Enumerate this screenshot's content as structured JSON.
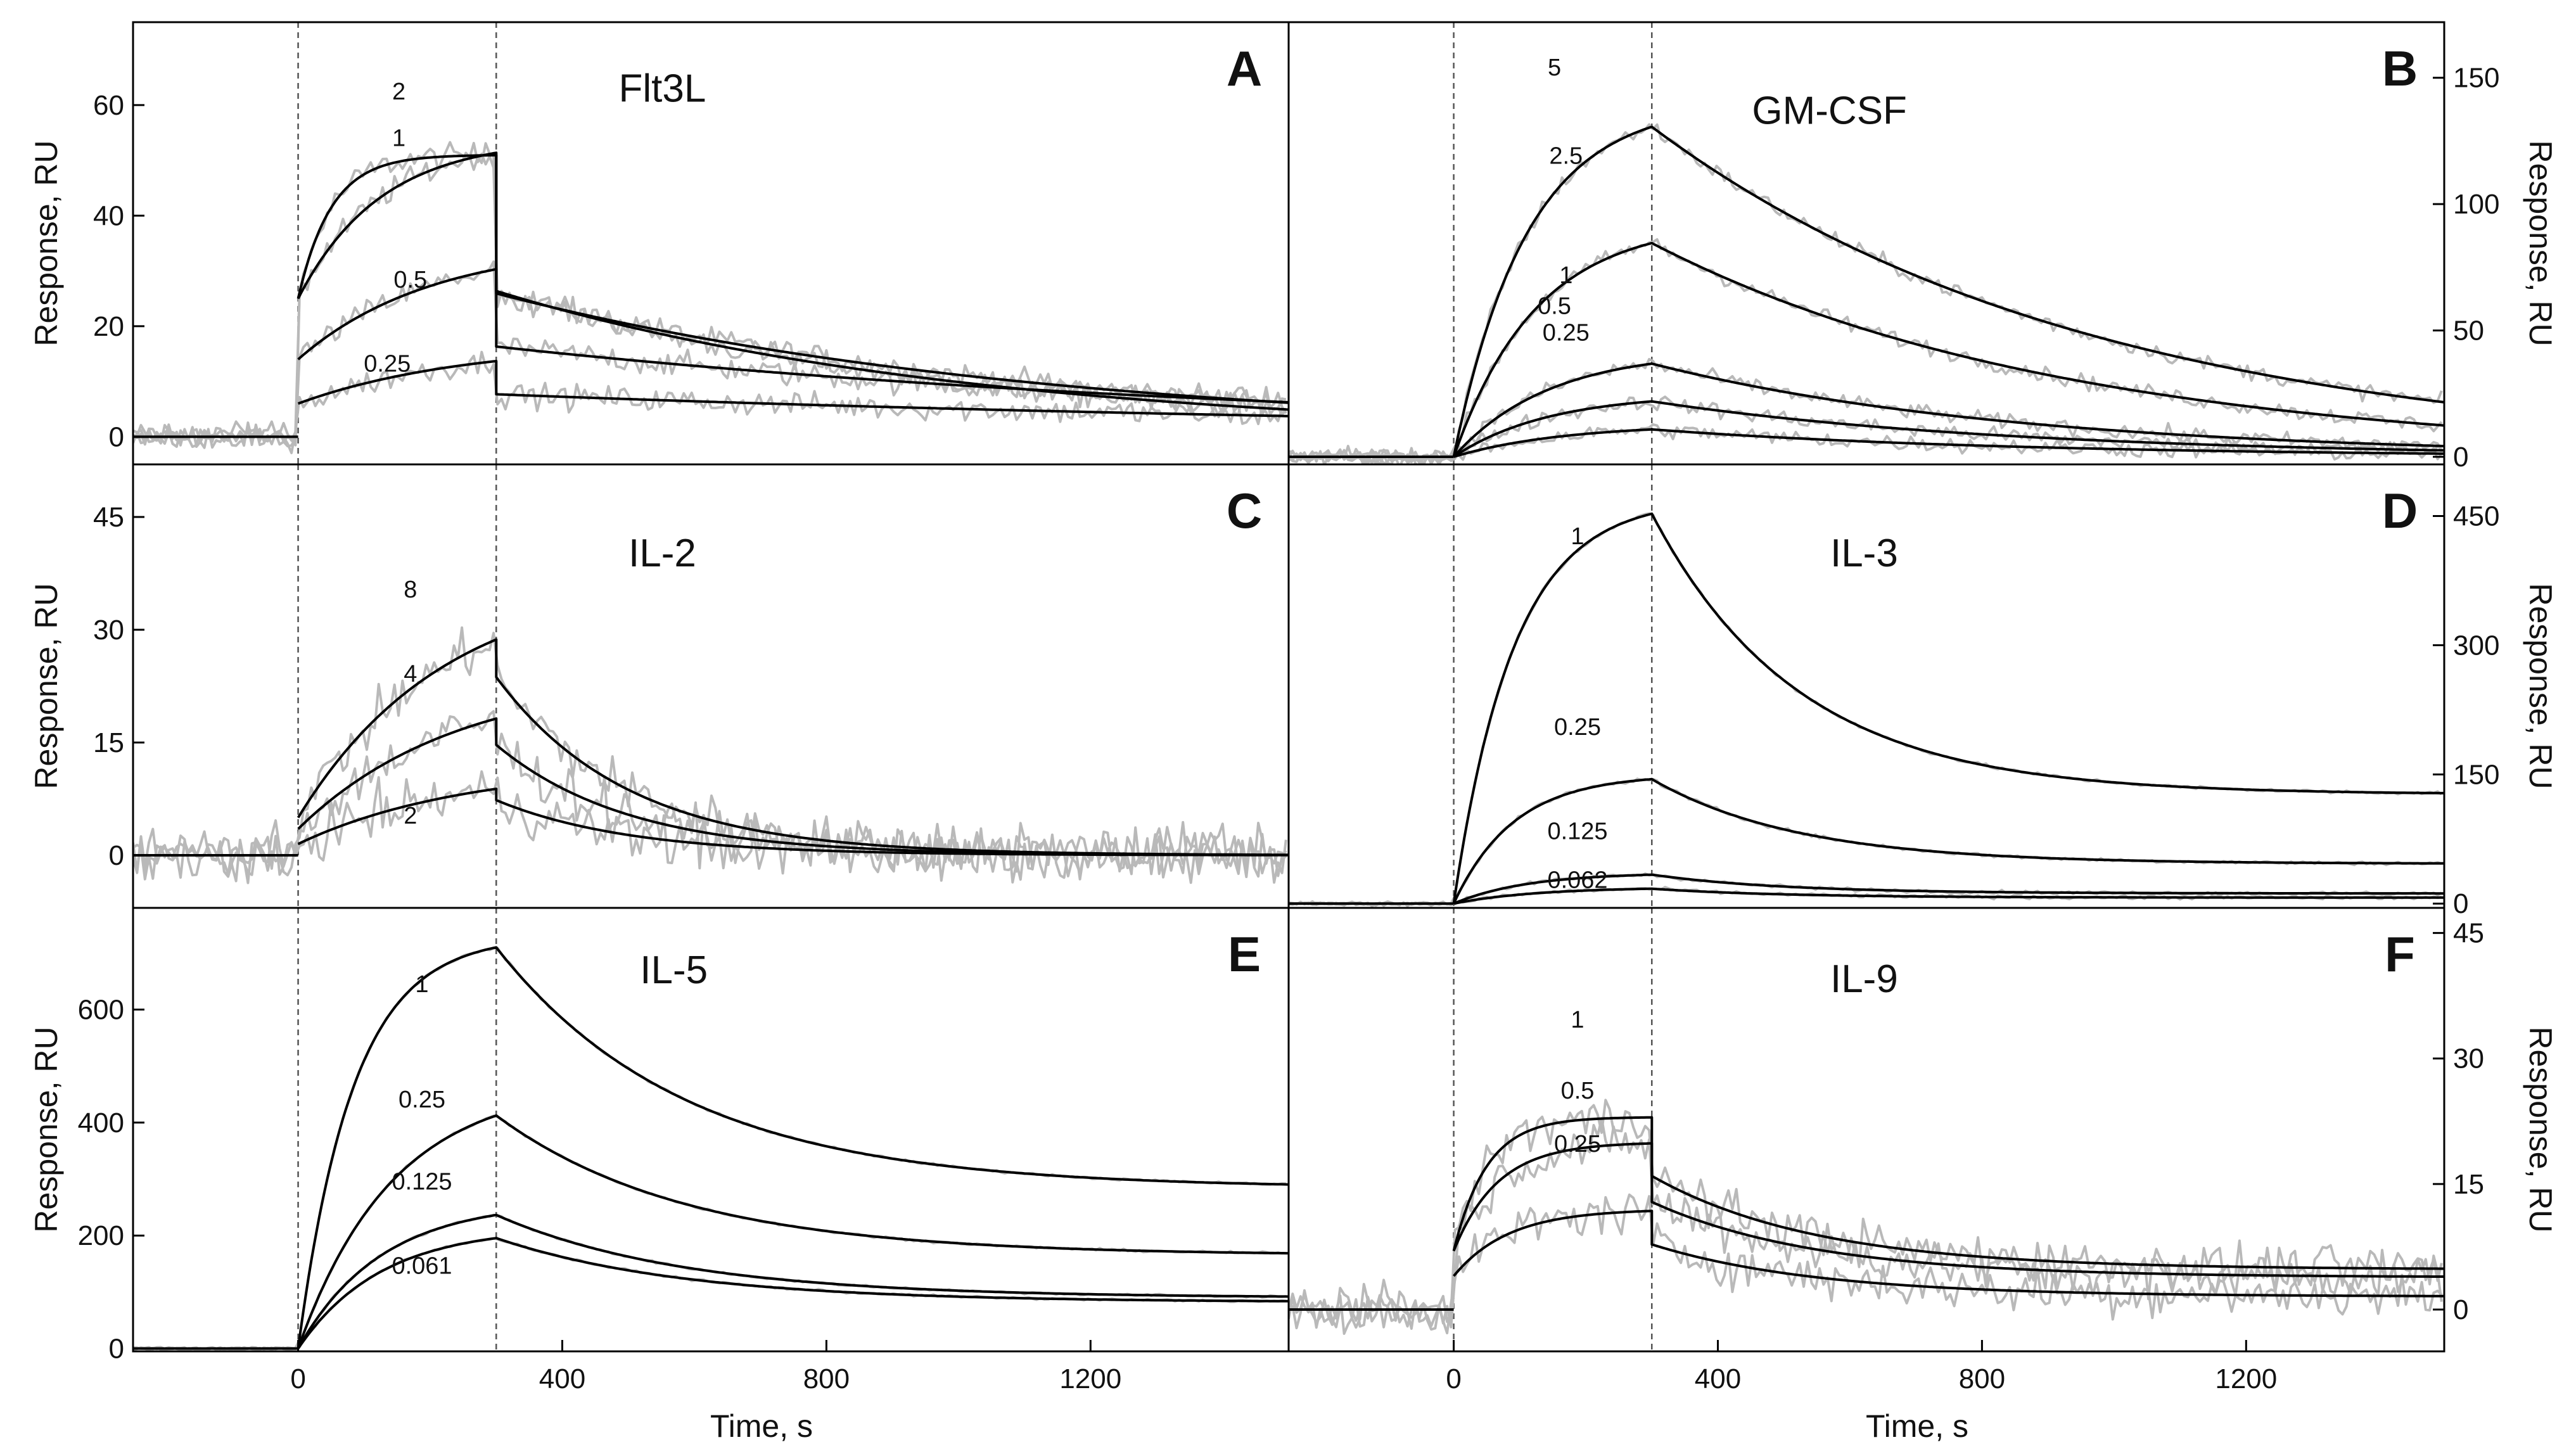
{
  "chart_data": {
    "type": "line",
    "description_axes": "Sensorgrams: response vs time, association 0-300 s, dissociation after 300 s",
    "injection_start_s": 0,
    "injection_end_s": 300,
    "x_axis": {
      "label": "Time, s",
      "range": [
        -250,
        1500
      ],
      "ticks": [
        0,
        400,
        800,
        1200
      ],
      "tick_labels": [
        "0",
        "400",
        "800",
        "1200"
      ]
    },
    "colors": {
      "raw": "#b9b9b9",
      "fit": "#000000",
      "frame": "#000000"
    },
    "panels": [
      {
        "id": "A",
        "letter": "A",
        "title": "Flt3L",
        "ylabel": "Response, RU",
        "y_axis_side": "left",
        "ylim": [
          -5,
          75
        ],
        "yticks": [
          0,
          20,
          40,
          60
        ],
        "ytick_labels": [
          "0",
          "20",
          "40",
          "60"
        ],
        "x_range": [
          -250,
          1500
        ],
        "show_x_ticks": false,
        "noise": 2.2,
        "jump": true,
        "baseline_y": 0,
        "series": [
          {
            "label": "2",
            "Rmax": 51,
            "k": 0.02,
            "jump": 25,
            "end": 25,
            "kd": 0.0012
          },
          {
            "label": "1",
            "Rmax": 54,
            "k": 0.008,
            "jump": 25,
            "end": 23,
            "kd": 0.0014
          },
          {
            "label": "0.5",
            "Rmax": 35,
            "k": 0.005,
            "jump": 14,
            "end": 16,
            "kd": 0.0008
          },
          {
            "label": "0.25",
            "Rmax": 17,
            "k": 0.004,
            "jump": 6,
            "end": 8,
            "kd": 0.0006
          }
        ]
      },
      {
        "id": "B",
        "letter": "B",
        "title": "GM-CSF",
        "ylabel": "Response, RU",
        "y_axis_side": "right",
        "ylim": [
          -3,
          172
        ],
        "yticks": [
          0,
          50,
          100,
          150
        ],
        "ytick_labels": [
          "0",
          "50",
          "100",
          "150"
        ],
        "x_range": [
          -250,
          1500
        ],
        "show_x_ticks": false,
        "noise": 3,
        "jump": false,
        "baseline_y": 0,
        "series": [
          {
            "label": "5",
            "Rmax": 140,
            "k": 0.009,
            "end": 88,
            "kd": 0.0015
          },
          {
            "label": "2.5",
            "Rmax": 93,
            "k": 0.008,
            "end": 58,
            "kd": 0.0016
          },
          {
            "label": "1",
            "Rmax": 42,
            "k": 0.007,
            "end": 28,
            "kd": 0.0018
          },
          {
            "label": "0.5",
            "Rmax": 25,
            "k": 0.007,
            "end": 16,
            "kd": 0.0018
          },
          {
            "label": "0.25",
            "Rmax": 13,
            "k": 0.006,
            "end": 8,
            "kd": 0.0018
          }
        ]
      },
      {
        "id": "C",
        "letter": "C",
        "title": "IL-2",
        "ylabel": "Response, RU",
        "y_axis_side": "left",
        "ylim": [
          -7,
          52
        ],
        "yticks": [
          0,
          15,
          30,
          45
        ],
        "ytick_labels": [
          "0",
          "15",
          "30",
          "45"
        ],
        "x_range": [
          -250,
          1500
        ],
        "show_x_ticks": false,
        "noise": 3.2,
        "jump": true,
        "baseline_y": 0,
        "series": [
          {
            "label": "8",
            "Rmax": 37,
            "k": 0.0045,
            "jump": 5,
            "end": 19,
            "kd": 0.005
          },
          {
            "label": "4",
            "Rmax": 24,
            "k": 0.0042,
            "jump": 3.5,
            "end": 11,
            "kd": 0.005
          },
          {
            "label": "2",
            "Rmax": 12,
            "k": 0.004,
            "jump": 1.5,
            "end": 6,
            "kd": 0.005
          }
        ]
      },
      {
        "id": "D",
        "letter": "D",
        "title": "IL-3",
        "ylabel": "Response, RU",
        "y_axis_side": "right",
        "ylim": [
          -5,
          510
        ],
        "yticks": [
          0,
          150,
          300,
          450
        ],
        "ytick_labels": [
          "0",
          "150",
          "300",
          "450"
        ],
        "x_range": [
          -250,
          1500
        ],
        "show_x_ticks": false,
        "noise": 2,
        "jump": false,
        "baseline_y": 0,
        "series": [
          {
            "label": "1",
            "Rmax": 470,
            "k": 0.011,
            "end": 140,
            "floor": 0.28,
            "kd": 0.0045
          },
          {
            "label": "0.25",
            "Rmax": 150,
            "k": 0.011,
            "end": 50,
            "floor": 0.32,
            "kd": 0.0045
          },
          {
            "label": "0.125",
            "Rmax": 36,
            "k": 0.009,
            "end": 12,
            "floor": 0.35,
            "kd": 0.005
          },
          {
            "label": "0.062",
            "Rmax": 19,
            "k": 0.008,
            "end": 7,
            "floor": 0.4,
            "kd": 0.005
          }
        ]
      },
      {
        "id": "E",
        "letter": "E",
        "title": "IL-5",
        "ylabel": "Response, RU",
        "y_axis_side": "left",
        "ylim": [
          -5,
          780
        ],
        "yticks": [
          0,
          200,
          400,
          600
        ],
        "ytick_labels": [
          "0",
          "200",
          "400",
          "600"
        ],
        "x_range": [
          -250,
          1500
        ],
        "show_x_ticks": true,
        "noise": 2,
        "jump": false,
        "baseline_y": 0,
        "series": [
          {
            "label": "1",
            "Rmax": 730,
            "k": 0.012,
            "end": 320,
            "floor": 0.4,
            "kd": 0.0035
          },
          {
            "label": "0.25",
            "Rmax": 470,
            "k": 0.007,
            "end": 180,
            "floor": 0.4,
            "kd": 0.0035
          },
          {
            "label": "0.125",
            "Rmax": 260,
            "k": 0.008,
            "end": 100,
            "floor": 0.38,
            "kd": 0.0035
          },
          {
            "label": "0.061",
            "Rmax": 215,
            "k": 0.008,
            "end": 95,
            "floor": 0.42,
            "kd": 0.0035
          }
        ]
      },
      {
        "id": "F",
        "letter": "F",
        "title": "IL-9",
        "ylabel": "Response, RU",
        "y_axis_side": "right",
        "ylim": [
          -5,
          48
        ],
        "yticks": [
          0,
          15,
          30,
          45
        ],
        "ytick_labels": [
          "0",
          "15",
          "30",
          "45"
        ],
        "x_range": [
          -250,
          1500
        ],
        "show_x_ticks": true,
        "noise": 2.6,
        "jump": true,
        "baseline_y": 0,
        "series": [
          {
            "label": "1",
            "Rmax": 23,
            "k": 0.02,
            "jump": 7,
            "end": 5,
            "floor": 0.3,
            "kd": 0.004
          },
          {
            "label": "0.5",
            "Rmax": 20,
            "k": 0.015,
            "jump": 7,
            "end": 5,
            "floor": 0.3,
            "kd": 0.004
          },
          {
            "label": "0.25",
            "Rmax": 12,
            "k": 0.012,
            "jump": 4,
            "end": 2.5,
            "floor": 0.2,
            "kd": 0.004
          }
        ]
      }
    ]
  }
}
